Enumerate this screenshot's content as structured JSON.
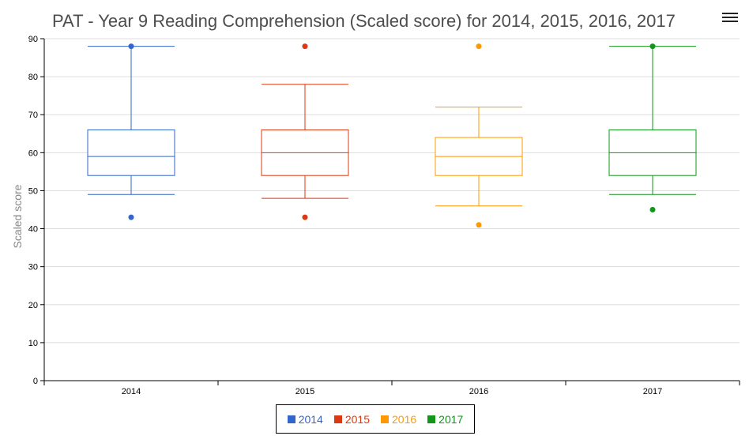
{
  "title": "PAT - Year 9 Reading Comprehension (Scaled score) for 2014, 2015, 2016, 2017",
  "menu_icon": "hamburger-menu-icon",
  "chart_data": {
    "type": "boxplot",
    "title": "PAT - Year 9 Reading Comprehension (Scaled score) for 2014, 2015, 2016, 2017",
    "xlabel": "",
    "ylabel": "Scaled score",
    "ylim": [
      0,
      90
    ],
    "yticks": [
      0,
      10,
      20,
      30,
      40,
      50,
      60,
      70,
      80,
      90
    ],
    "grid": true,
    "categories": [
      "2014",
      "2015",
      "2016",
      "2017"
    ],
    "series": [
      {
        "name": "2014",
        "color": "#3366cc",
        "min": 49,
        "q1": 54,
        "median": 59,
        "q3": 66,
        "max": 88,
        "outliers": [
          43,
          88
        ]
      },
      {
        "name": "2015",
        "color": "#dc3912",
        "min": 48,
        "q1": 54,
        "median": 60,
        "q3": 66,
        "max": 78,
        "outliers": [
          43,
          88
        ]
      },
      {
        "name": "2016",
        "color": "#ff9900",
        "min": 46,
        "q1": 54,
        "median": 59,
        "q3": 64,
        "max": 72,
        "outliers": [
          41,
          88
        ]
      },
      {
        "name": "2017",
        "color": "#109618",
        "min": 49,
        "q1": 54,
        "median": 60,
        "q3": 66,
        "max": 88,
        "outliers": [
          45,
          88
        ]
      }
    ],
    "legend_position": "bottom-center"
  }
}
